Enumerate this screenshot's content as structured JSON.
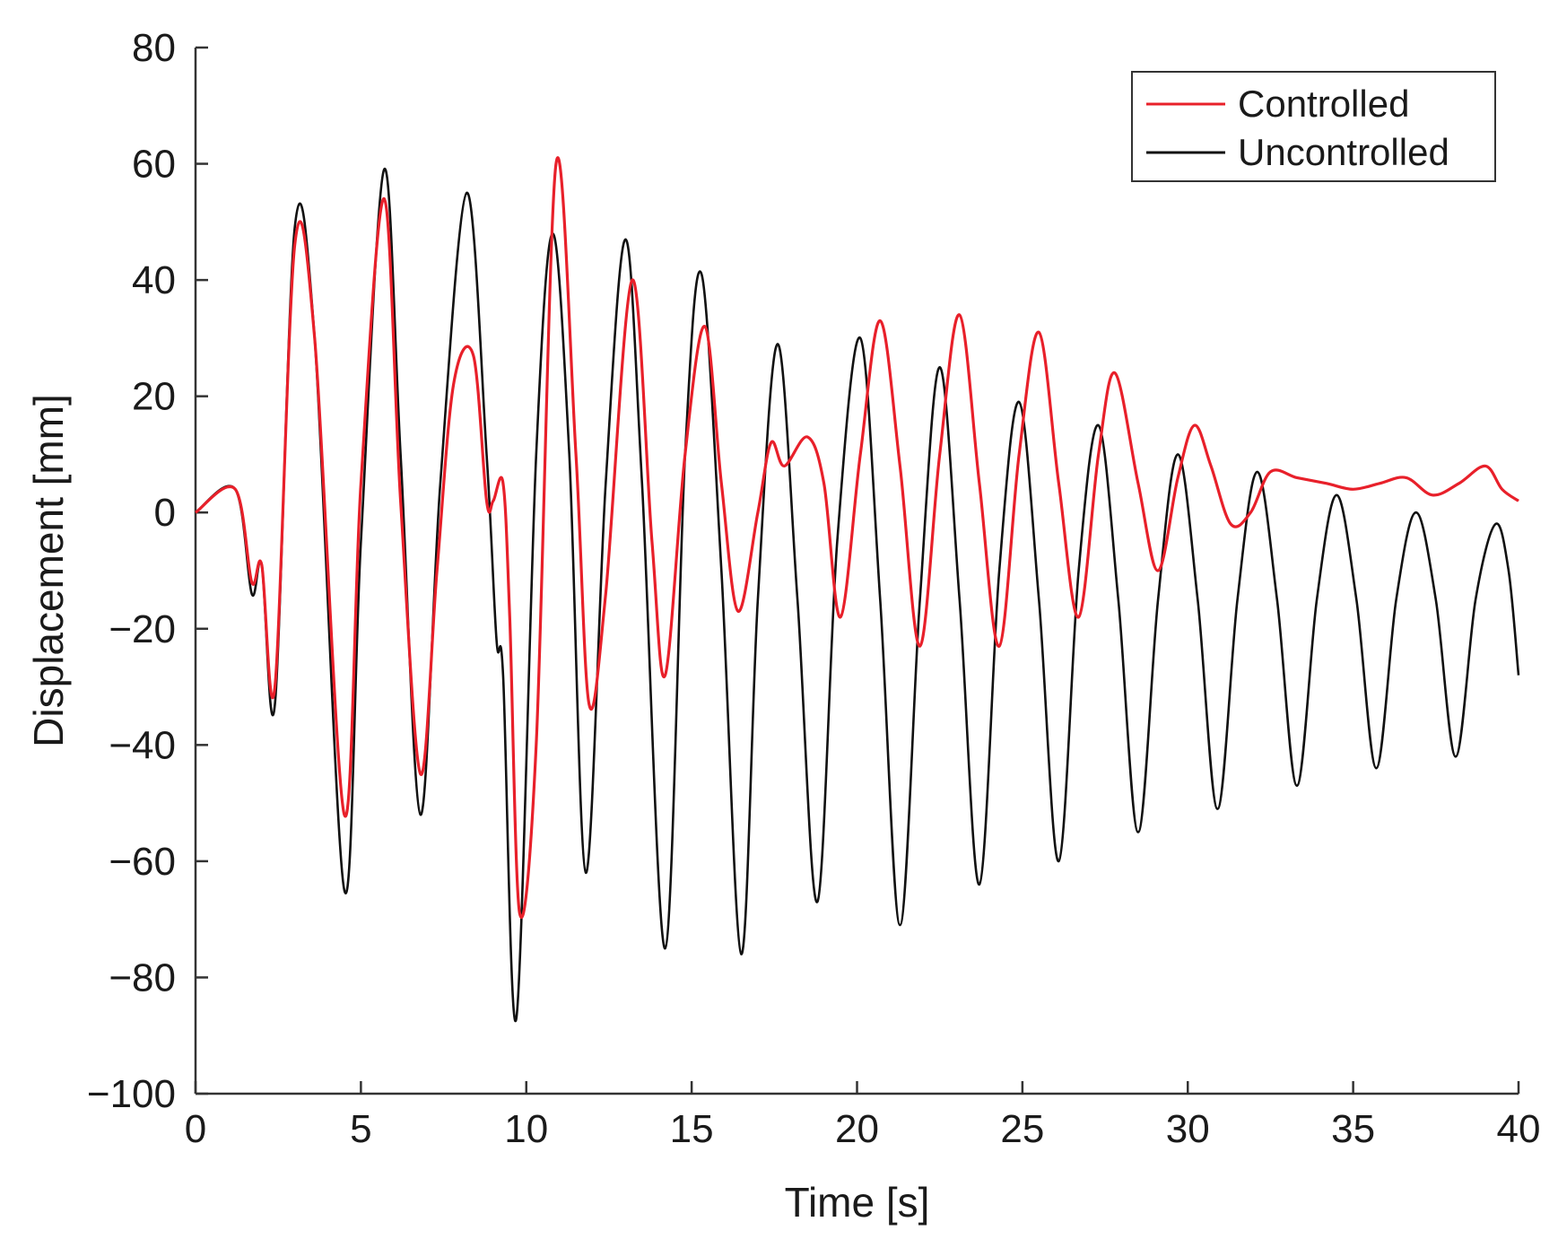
{
  "chart_data": {
    "type": "line",
    "title": "",
    "xlabel": "Time [s]",
    "ylabel": "Displacement [mm]",
    "xlim": [
      0,
      40
    ],
    "ylim": [
      -100,
      80
    ],
    "xticks": [
      0,
      5,
      10,
      15,
      20,
      25,
      30,
      35,
      40
    ],
    "yticks": [
      80,
      60,
      40,
      20,
      0,
      -20,
      -40,
      -60,
      -80,
      -100
    ],
    "xtick_labels": [
      "0",
      "5",
      "10",
      "15",
      "20",
      "25",
      "30",
      "35",
      "40"
    ],
    "ytick_labels": [
      "80",
      "60",
      "40",
      "20",
      "0",
      "−20",
      "−40",
      "−60",
      "−80",
      "−100"
    ],
    "grid": false,
    "legend_position": "top-right",
    "series": [
      {
        "name": "Controlled",
        "color": "#e8202a",
        "x": [
          0,
          1.2,
          1.7,
          2.0,
          2.4,
          3.0,
          3.6,
          4.5,
          5.0,
          5.7,
          6.2,
          6.8,
          7.3,
          7.8,
          8.4,
          8.8,
          9.0,
          9.3,
          9.5,
          9.8,
          10.3,
          10.9,
          11.5,
          11.9,
          12.4,
          13.2,
          13.8,
          14.2,
          14.8,
          15.4,
          15.9,
          16.4,
          17.0,
          17.4,
          17.8,
          18.5,
          19.0,
          19.5,
          20.1,
          20.7,
          21.3,
          21.9,
          22.5,
          23.1,
          23.7,
          24.3,
          24.9,
          25.5,
          26.1,
          26.7,
          27.3,
          27.8,
          28.5,
          29.1,
          29.7,
          30.2,
          30.7,
          31.3,
          31.9,
          32.5,
          33.3,
          34.2,
          35.0,
          35.8,
          36.6,
          37.4,
          38.2,
          39.0,
          39.5,
          40.0
        ],
        "values": [
          0,
          4,
          -12,
          -9,
          -30,
          46,
          30,
          -52,
          5,
          54,
          2,
          -45,
          -10,
          22,
          27,
          2,
          2,
          5,
          -18,
          -69,
          -40,
          60,
          10,
          -33,
          -14,
          40,
          -5,
          -28,
          10,
          32,
          5,
          -17,
          0,
          12,
          8,
          13,
          5,
          -18,
          10,
          33,
          8,
          -23,
          10,
          34,
          5,
          -23,
          10,
          31,
          5,
          -18,
          10,
          24,
          5,
          -10,
          6,
          15,
          8,
          -2,
          0,
          7,
          6,
          5,
          4,
          5,
          6,
          3,
          5,
          8,
          4,
          2
        ]
      },
      {
        "name": "Uncontrolled",
        "color": "#111111",
        "x": [
          0,
          1.2,
          1.7,
          2.0,
          2.4,
          3.0,
          3.6,
          4.5,
          5.0,
          5.7,
          6.2,
          6.8,
          7.4,
          8.2,
          8.8,
          9.1,
          9.3,
          9.7,
          10.3,
          10.8,
          11.3,
          11.8,
          12.4,
          13.0,
          13.5,
          14.2,
          14.8,
          15.3,
          15.9,
          16.5,
          17.0,
          17.6,
          18.2,
          18.8,
          19.4,
          20.1,
          20.7,
          21.3,
          21.9,
          22.5,
          23.1,
          23.7,
          24.3,
          24.9,
          25.5,
          26.1,
          26.7,
          27.3,
          27.9,
          28.5,
          29.1,
          29.7,
          30.3,
          30.9,
          31.5,
          32.1,
          32.7,
          33.3,
          33.9,
          34.5,
          35.1,
          35.7,
          36.3,
          36.9,
          37.5,
          38.1,
          38.7,
          39.3,
          39.7,
          40.0
        ],
        "values": [
          0,
          4,
          -14,
          -9,
          -33,
          49,
          30,
          -65,
          -5,
          59,
          10,
          -52,
          5,
          55,
          10,
          -22,
          -28,
          -87,
          10,
          48,
          10,
          -62,
          5,
          47,
          5,
          -75,
          10,
          41,
          -10,
          -76,
          -15,
          29,
          -15,
          -67,
          -5,
          30,
          -15,
          -71,
          -15,
          25,
          -15,
          -64,
          -10,
          19,
          -15,
          -60,
          -10,
          15,
          -15,
          -55,
          -15,
          10,
          -15,
          -51,
          -15,
          7,
          -15,
          -47,
          -15,
          3,
          -15,
          -44,
          -15,
          0,
          -15,
          -42,
          -15,
          -2,
          -10,
          -28
        ]
      }
    ]
  }
}
